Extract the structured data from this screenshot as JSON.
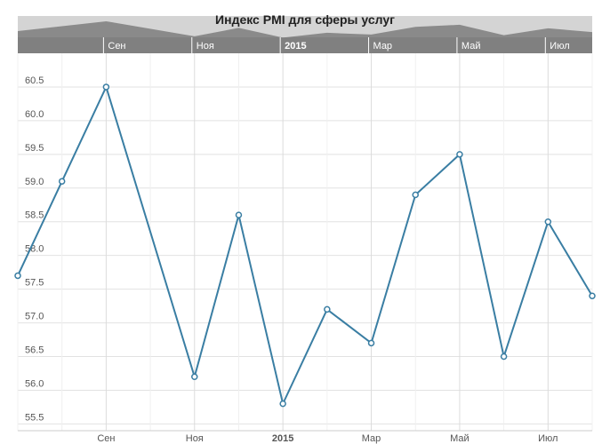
{
  "chart_data": {
    "type": "line",
    "title": "Индекс PMI для сферы услуг",
    "categories": [
      null,
      null,
      "Сен",
      null,
      "Ноя",
      null,
      "2015",
      null,
      "Мар",
      null,
      "Май",
      null,
      "Июл",
      null
    ],
    "series": [
      {
        "color": "#3a7ea3",
        "values": [
          57.7,
          59.1,
          60.5,
          null,
          56.2,
          58.6,
          55.8,
          57.2,
          56.7,
          58.9,
          59.5,
          56.5,
          58.5,
          57.4
        ]
      }
    ],
    "ylim": [
      55.4,
      61.0
    ],
    "yticks": [
      55.5,
      {
        "value": 56,
        "label": "56.0"
      },
      56.5,
      {
        "value": 57,
        "label": "57.0"
      },
      57.5,
      {
        "value": 58,
        "label": "58.0"
      },
      58.5,
      {
        "value": 59,
        "label": "59.0"
      },
      59.5,
      {
        "value": 60,
        "label": "60.0"
      },
      60.5
    ],
    "grid": true
  }
}
